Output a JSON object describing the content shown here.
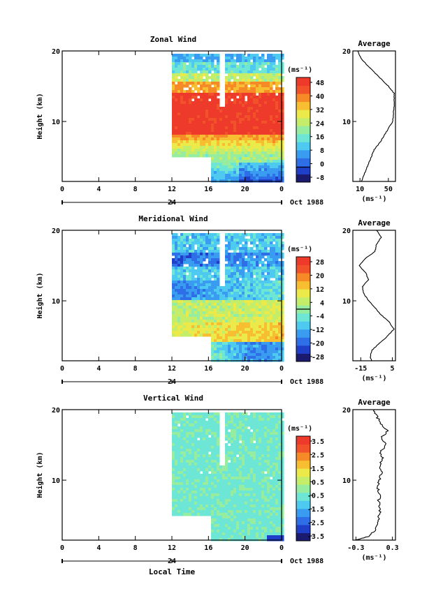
{
  "figure": {
    "xlabel_bottom": "Local Time",
    "date_label": "Oct 1988"
  },
  "colors": {
    "missing": "#ffffff",
    "scale": [
      "#1a1a6e",
      "#1f3fc8",
      "#2e6ee6",
      "#3a9cf0",
      "#4ec9f0",
      "#6ee6d6",
      "#96eda0",
      "#c4ee6a",
      "#ecea4a",
      "#f7be32",
      "#f68a26",
      "#f2522a",
      "#ee3a2a"
    ]
  },
  "chart_data": [
    {
      "type": "heatmap",
      "title": "Zonal Wind",
      "ylabel": "Height (km)",
      "yticks": [
        "20",
        "10"
      ],
      "xticks": [
        "0",
        "4",
        "8",
        "12",
        "16",
        "20",
        "0"
      ],
      "x_secondary_label": "24",
      "ylim": [
        1.5,
        20
      ],
      "data_x_start": 12,
      "lower_gap": {
        "x_end": 16,
        "y_top": 5
      },
      "units": "(ms⁻¹)",
      "colorbar_ticks": [
        "48",
        "40",
        "32",
        "24",
        "16",
        "8",
        "0",
        "-8"
      ],
      "colorbar_range": [
        -8,
        48
      ],
      "zero_line": true,
      "profile": {
        "title": "Average",
        "xticks": [
          "10",
          "50"
        ],
        "xlim": [
          0,
          60
        ],
        "xlabel": "(ms⁻¹)",
        "yticks": [
          "20",
          "10"
        ],
        "heights": [
          1.5,
          2,
          3,
          4,
          5,
          6,
          7,
          8,
          9,
          10,
          11,
          12,
          13,
          14,
          15,
          16,
          17,
          18,
          19,
          20
        ],
        "values": [
          12,
          14,
          18,
          22,
          26,
          30,
          38,
          44,
          50,
          56,
          57,
          58,
          58,
          58,
          50,
          40,
          30,
          20,
          11,
          7
        ]
      }
    },
    {
      "type": "heatmap",
      "title": "Meridional Wind",
      "ylabel": "Height (km)",
      "yticks": [
        "20",
        "10"
      ],
      "xticks": [
        "0",
        "4",
        "8",
        "12",
        "16",
        "20",
        "0"
      ],
      "x_secondary_label": "24",
      "ylim": [
        1.5,
        20
      ],
      "data_x_start": 12,
      "lower_gap": {
        "x_end": 16,
        "y_top": 5
      },
      "units": "(ms⁻¹)",
      "colorbar_ticks": [
        "28",
        "20",
        "12",
        "4",
        "-4",
        "-12",
        "-20",
        "-28"
      ],
      "colorbar_range": [
        -28,
        28
      ],
      "zero_line": true,
      "profile": {
        "title": "Average",
        "xticks": [
          "-15",
          "5"
        ],
        "xlim": [
          -20,
          7
        ],
        "xlabel": "(ms⁻¹)",
        "yticks": [
          "20",
          "10"
        ],
        "heights": [
          1.5,
          2,
          3,
          4,
          5,
          6,
          7,
          8,
          9,
          10,
          11,
          12,
          13,
          14,
          15,
          16,
          17,
          18,
          19,
          20
        ],
        "values": [
          -8,
          -9,
          -8,
          -3,
          2,
          6,
          3,
          -2,
          -6,
          -10,
          -13,
          -14,
          -10,
          -12,
          -16,
          -12,
          -6,
          -5,
          -2,
          -5
        ]
      }
    },
    {
      "type": "heatmap",
      "title": "Vertical Wind",
      "ylabel": "Height (km)",
      "yticks": [
        "20",
        "10"
      ],
      "xticks": [
        "0",
        "4",
        "8",
        "12",
        "16",
        "20",
        "0"
      ],
      "x_secondary_label": "24",
      "ylim": [
        1.5,
        20
      ],
      "data_x_start": 12,
      "lower_gap": {
        "x_end": 16,
        "y_top": 5
      },
      "units": "(ms⁻¹)",
      "colorbar_ticks": [
        "3.5",
        "2.5",
        "1.5",
        "0.5",
        "-0.5",
        "-1.5",
        "-2.5",
        "-3.5"
      ],
      "colorbar_range": [
        -3.5,
        3.5
      ],
      "zero_line": false,
      "profile": {
        "title": "Average",
        "xticks": [
          "-0.3",
          "0.3"
        ],
        "xlim": [
          -0.35,
          0.35
        ],
        "xlabel": "(ms⁻¹)",
        "yticks": [
          "20",
          "10"
        ],
        "heights": [
          1.5,
          2,
          3,
          4,
          5,
          6,
          7,
          8,
          9,
          10,
          11,
          12,
          13,
          14,
          15,
          16,
          17,
          18,
          19,
          20
        ],
        "values": [
          -0.3,
          -0.1,
          0.02,
          0.05,
          0.08,
          0.1,
          0.07,
          0.1,
          0.05,
          0.08,
          0.12,
          0.09,
          0.14,
          0.1,
          0.2,
          0.12,
          0.22,
          0.1,
          0.05,
          0.0
        ]
      }
    }
  ]
}
